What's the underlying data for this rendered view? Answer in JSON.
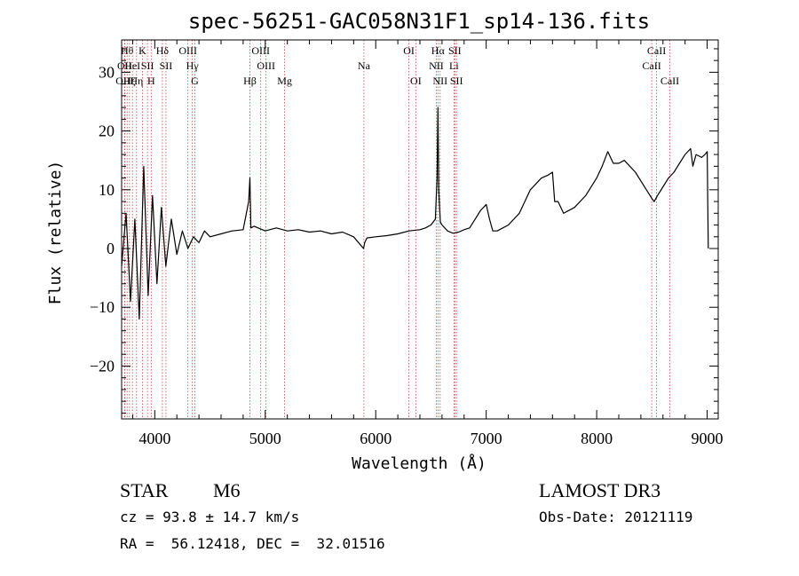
{
  "chart_data": {
    "type": "line",
    "title": "spec-56251-GAC058N31F1_sp14-136.fits",
    "xlabel": "Wavelength (Å)",
    "ylabel": "Flux (relative)",
    "xlim": [
      3700,
      9100
    ],
    "ylim": [
      -29,
      35.5
    ],
    "xticks": [
      4000,
      5000,
      6000,
      7000,
      8000,
      9000
    ],
    "yticks": [
      -20,
      -10,
      0,
      10,
      20,
      30
    ],
    "xtick_labels": [
      "4000",
      "5000",
      "6000",
      "7000",
      "8000",
      "9000"
    ],
    "ytick_labels": [
      "−20",
      "−10",
      "0",
      "10",
      "20",
      "30"
    ],
    "series": [
      {
        "name": "flux",
        "x": [
          3700,
          3740,
          3780,
          3820,
          3860,
          3900,
          3940,
          3980,
          4020,
          4060,
          4100,
          4150,
          4200,
          4250,
          4300,
          4350,
          4400,
          4450,
          4500,
          4600,
          4700,
          4800,
          4850,
          4861,
          4870,
          4900,
          5000,
          5100,
          5200,
          5300,
          5400,
          5500,
          5600,
          5700,
          5800,
          5890,
          5900,
          5920,
          6000,
          6100,
          6200,
          6300,
          6400,
          6450,
          6500,
          6540,
          6555,
          6563,
          6570,
          6585,
          6600,
          6650,
          6700,
          6750,
          6800,
          6850,
          6900,
          6950,
          7000,
          7030,
          7060,
          7100,
          7200,
          7300,
          7400,
          7500,
          7560,
          7600,
          7620,
          7650,
          7700,
          7800,
          7900,
          8000,
          8050,
          8100,
          8150,
          8200,
          8250,
          8300,
          8350,
          8400,
          8450,
          8500,
          8520,
          8550,
          8600,
          8650,
          8700,
          8750,
          8800,
          8850,
          8870,
          8900,
          8950,
          8980,
          9000,
          9010
        ],
        "y": [
          -3,
          6,
          -9,
          5,
          -12,
          14,
          -8,
          9,
          -6,
          7,
          -3,
          5,
          -1,
          3,
          0,
          2,
          1,
          3,
          2,
          2.5,
          3,
          3.2,
          8,
          12,
          3.5,
          3.8,
          3,
          3.5,
          3,
          3.2,
          2.8,
          3,
          2.5,
          2.8,
          2,
          0,
          1,
          1.8,
          2,
          2.2,
          2.5,
          3,
          3.2,
          3.5,
          4,
          5,
          12,
          24,
          10,
          4.5,
          4,
          3,
          2.6,
          2.8,
          3.2,
          3.5,
          5,
          6.5,
          7.5,
          5,
          3,
          3,
          4,
          6,
          10,
          12,
          12.5,
          13,
          8,
          8,
          6,
          7,
          9,
          12,
          14,
          16.5,
          14.5,
          14.5,
          15,
          14,
          13,
          11.5,
          10,
          8.5,
          8,
          9,
          10.5,
          12,
          13,
          14.5,
          16,
          17,
          14,
          16,
          15.5,
          16,
          16.5,
          0
        ]
      }
    ],
    "line_markers": [
      {
        "label": "OII",
        "x": 3727,
        "row": 2
      },
      {
        "label": "OIII",
        "x": 3729,
        "row": 3
      },
      {
        "label": "Hθ",
        "x": 3750,
        "row": 1
      },
      {
        "label": "Hζ",
        "x": 3771,
        "row": 3
      },
      {
        "label": "HeI",
        "x": 3798,
        "row": 2
      },
      {
        "label": "Hη",
        "x": 3835,
        "row": 3
      },
      {
        "label": "K",
        "x": 3889,
        "row": 1
      },
      {
        "label": "SII",
        "x": 3934,
        "row": 2
      },
      {
        "label": "H",
        "x": 3968,
        "row": 3
      },
      {
        "label": "Hδ",
        "x": 4069,
        "row": 1
      },
      {
        "label": "SII",
        "x": 4101,
        "row": 2
      },
      {
        "label": "OIII",
        "x": 4300,
        "row": 1
      },
      {
        "label": "Hγ",
        "x": 4340,
        "row": 2
      },
      {
        "label": "G",
        "x": 4363,
        "row": 3
      },
      {
        "label": "Hβ",
        "x": 4861,
        "row": 3
      },
      {
        "label": "OIII",
        "x": 4959,
        "row": 1
      },
      {
        "label": "OIII",
        "x": 5007,
        "row": 2
      },
      {
        "label": "Mg",
        "x": 5175,
        "row": 3
      },
      {
        "label": "Na",
        "x": 5893,
        "row": 2
      },
      {
        "label": "OI",
        "x": 6300,
        "row": 1
      },
      {
        "label": "OI",
        "x": 6363,
        "row": 3
      },
      {
        "label": "Hα",
        "x": 6563,
        "row": 1
      },
      {
        "label": "NII",
        "x": 6548,
        "row": 2
      },
      {
        "label": "NII",
        "x": 6583,
        "row": 3
      },
      {
        "label": "SII",
        "x": 6716,
        "row": 1
      },
      {
        "label": "Li",
        "x": 6708,
        "row": 2
      },
      {
        "label": "SII",
        "x": 6731,
        "row": 3
      },
      {
        "label": "CaII",
        "x": 8542,
        "row": 1
      },
      {
        "label": "CaII",
        "x": 8498,
        "row": 2
      },
      {
        "label": "CaII",
        "x": 8662,
        "row": 3
      }
    ],
    "marker_color": "#d04040"
  },
  "info": {
    "class": "STAR",
    "subclass": "M6",
    "survey": "LAMOST DR3",
    "cz": "cz = 93.8 ± 14.7 km/s",
    "obs_date": "Obs-Date: 20121119",
    "coords": "RA =  56.12418, DEC =  32.01516"
  }
}
